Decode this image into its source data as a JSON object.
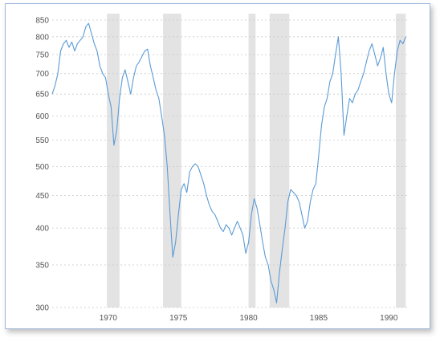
{
  "chart_data": {
    "type": "line",
    "title": "",
    "xlabel": "",
    "ylabel": "",
    "y_scale": "log",
    "xlim": [
      1966.0,
      1991.3
    ],
    "ylim": [
      300,
      870
    ],
    "x_ticks": [
      "1970",
      "1975",
      "1980",
      "1985",
      "1990"
    ],
    "y_ticks": [
      "850",
      "800",
      "750",
      "700",
      "650",
      "600",
      "550",
      "500",
      "450",
      "400",
      "350",
      "300"
    ],
    "grid": "horizontal-dotted",
    "line_color": "#5b9bd5",
    "shade_color": "#e3e3e3",
    "recessions": [
      [
        1969.9,
        1970.8
      ],
      [
        1973.9,
        1975.2
      ],
      [
        1980.0,
        1980.5
      ],
      [
        1981.5,
        1982.9
      ],
      [
        1990.5,
        1991.2
      ]
    ],
    "series": [
      {
        "x": [
          1966.0,
          1966.2,
          1966.4,
          1966.6,
          1966.8,
          1967.0,
          1967.2,
          1967.4,
          1967.6,
          1967.8,
          1968.0,
          1968.2,
          1968.4,
          1968.6,
          1968.8,
          1969.0,
          1969.2,
          1969.4,
          1969.6,
          1969.8,
          1970.0,
          1970.2,
          1970.4,
          1970.6,
          1970.8,
          1971.0,
          1971.2,
          1971.4,
          1971.6,
          1971.8,
          1972.0,
          1972.2,
          1972.4,
          1972.6,
          1972.8,
          1973.0,
          1973.2,
          1973.4,
          1973.6,
          1973.8,
          1974.0,
          1974.2,
          1974.4,
          1974.6,
          1974.8,
          1975.0,
          1975.2,
          1975.4,
          1975.6,
          1975.8,
          1976.0,
          1976.2,
          1976.4,
          1976.6,
          1976.8,
          1977.0,
          1977.2,
          1977.4,
          1977.6,
          1977.8,
          1978.0,
          1978.2,
          1978.4,
          1978.6,
          1978.8,
          1979.0,
          1979.2,
          1979.4,
          1979.6,
          1979.8,
          1980.0,
          1980.2,
          1980.4,
          1980.6,
          1980.8,
          1981.0,
          1981.2,
          1981.4,
          1981.6,
          1981.8,
          1982.0,
          1982.2,
          1982.4,
          1982.6,
          1982.8,
          1983.0,
          1983.2,
          1983.4,
          1983.6,
          1983.8,
          1984.0,
          1984.2,
          1984.4,
          1984.6,
          1984.8,
          1985.0,
          1985.2,
          1985.4,
          1985.6,
          1985.8,
          1986.0,
          1986.2,
          1986.4,
          1986.6,
          1986.8,
          1987.0,
          1987.2,
          1987.4,
          1987.6,
          1987.8,
          1988.0,
          1988.2,
          1988.4,
          1988.6,
          1988.8,
          1989.0,
          1989.2,
          1989.4,
          1989.6,
          1989.8,
          1990.0,
          1990.2,
          1990.4,
          1990.6,
          1990.8,
          1991.0,
          1991.2
        ],
        "values": [
          650,
          670,
          700,
          760,
          780,
          790,
          770,
          785,
          760,
          780,
          790,
          800,
          830,
          840,
          810,
          780,
          760,
          720,
          700,
          690,
          650,
          620,
          540,
          570,
          640,
          690,
          710,
          680,
          650,
          690,
          720,
          730,
          745,
          760,
          765,
          720,
          690,
          660,
          640,
          600,
          560,
          500,
          420,
          360,
          380,
          420,
          460,
          470,
          455,
          490,
          500,
          505,
          500,
          485,
          470,
          450,
          435,
          425,
          420,
          410,
          400,
          395,
          405,
          400,
          390,
          400,
          410,
          400,
          390,
          365,
          380,
          420,
          445,
          430,
          405,
          380,
          360,
          350,
          330,
          320,
          305,
          340,
          370,
          400,
          440,
          460,
          455,
          450,
          440,
          420,
          400,
          410,
          440,
          460,
          470,
          520,
          580,
          620,
          640,
          680,
          700,
          750,
          800,
          700,
          560,
          600,
          640,
          630,
          650,
          660,
          680,
          700,
          730,
          760,
          780,
          750,
          720,
          740,
          770,
          700,
          650,
          630,
          700,
          760,
          790,
          780,
          800
        ]
      }
    ]
  }
}
